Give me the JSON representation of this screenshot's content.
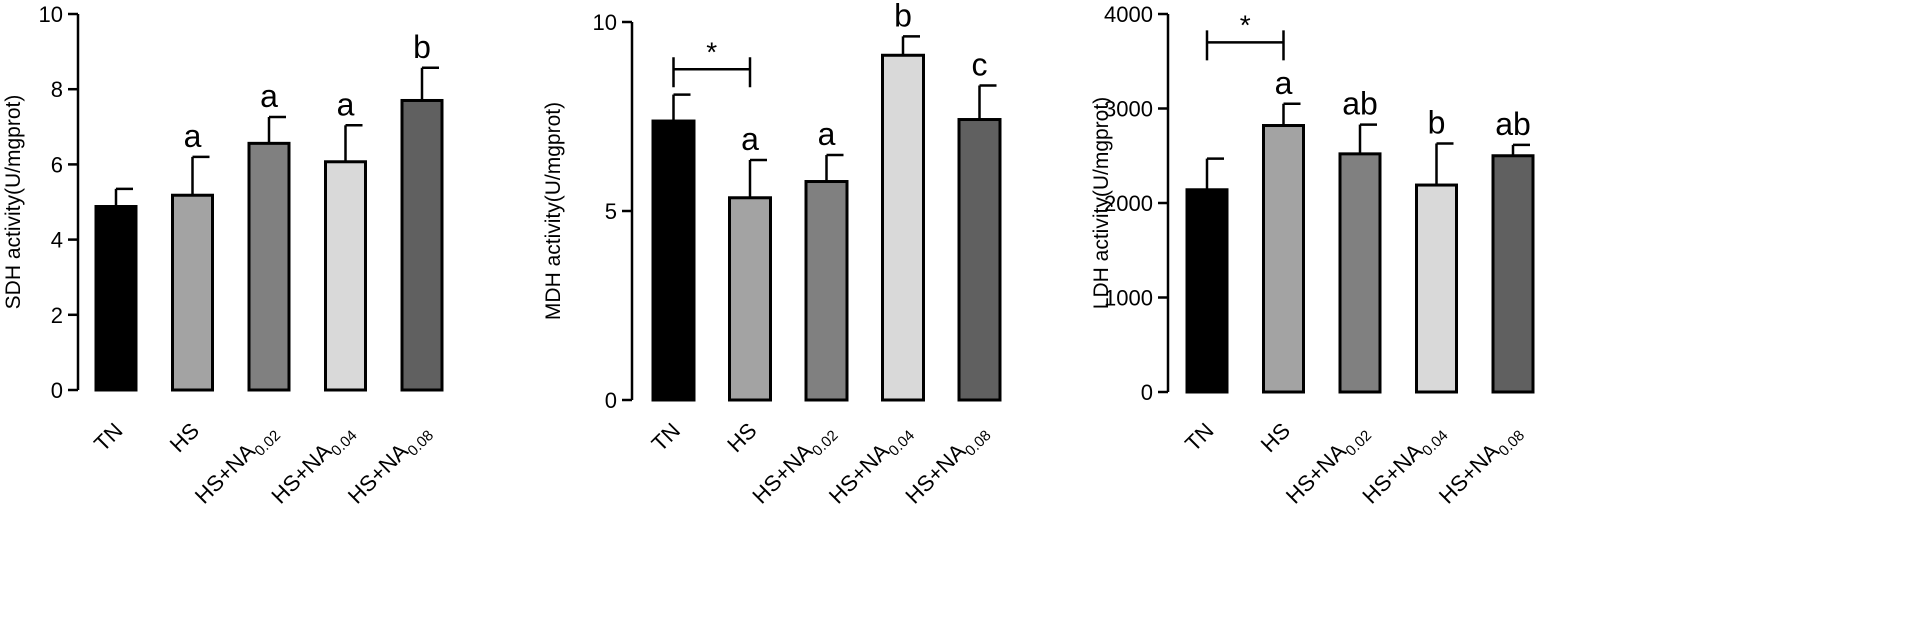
{
  "chart_data": [
    {
      "type": "bar",
      "panel": "sdh",
      "ylabel": "SDH activity(U/mgprot)",
      "ylim": [
        0,
        10
      ],
      "yticks": [
        0,
        2,
        4,
        6,
        8,
        10
      ],
      "categories": [
        {
          "main": "TN",
          "sub": ""
        },
        {
          "main": "HS",
          "sub": ""
        },
        {
          "main": "HS+NA",
          "sub": "0.02"
        },
        {
          "main": "HS+NA",
          "sub": "0.04"
        },
        {
          "main": "HS+NA",
          "sub": "0.08"
        }
      ],
      "values": [
        4.88,
        5.18,
        6.56,
        6.07,
        7.7
      ],
      "errors": [
        0.47,
        1.02,
        0.7,
        0.97,
        0.87
      ],
      "letters": [
        "",
        "a",
        "a",
        "a",
        "b"
      ],
      "colors": [
        "#000000",
        "#a3a3a3",
        "#808080",
        "#d9d9d9",
        "#606060"
      ],
      "significance": null
    },
    {
      "type": "bar",
      "panel": "mdh",
      "ylabel": "MDH activity(U/mgprot)",
      "ylim": [
        0,
        10
      ],
      "yticks": [
        0,
        5,
        10
      ],
      "categories": [
        {
          "main": "TN",
          "sub": ""
        },
        {
          "main": "HS",
          "sub": ""
        },
        {
          "main": "HS+NA",
          "sub": "0.02"
        },
        {
          "main": "HS+NA",
          "sub": "0.04"
        },
        {
          "main": "HS+NA",
          "sub": "0.08"
        }
      ],
      "values": [
        7.38,
        5.35,
        5.78,
        9.12,
        7.42
      ],
      "errors": [
        0.7,
        1.0,
        0.7,
        0.5,
        0.9
      ],
      "letters": [
        "",
        "a",
        "a",
        "b",
        "c"
      ],
      "colors": [
        "#000000",
        "#a3a3a3",
        "#808080",
        "#d9d9d9",
        "#606060"
      ],
      "significance": {
        "from": 0,
        "to": 1,
        "label": "*",
        "y": 8.75
      }
    },
    {
      "type": "bar",
      "panel": "ldh",
      "ylabel": "LDH activity(U/mgprot)",
      "ylim": [
        0,
        4000
      ],
      "yticks": [
        0,
        1000,
        2000,
        3000,
        4000
      ],
      "categories": [
        {
          "main": "TN",
          "sub": ""
        },
        {
          "main": "HS",
          "sub": ""
        },
        {
          "main": "HS+NA",
          "sub": "0.02"
        },
        {
          "main": "HS+NA",
          "sub": "0.04"
        },
        {
          "main": "HS+NA",
          "sub": "0.08"
        }
      ],
      "values": [
        2140,
        2820,
        2520,
        2190,
        2500
      ],
      "errors": [
        330,
        230,
        310,
        440,
        115
      ],
      "letters": [
        "",
        "a",
        "ab",
        "b",
        "ab"
      ],
      "colors": [
        "#000000",
        "#a3a3a3",
        "#808080",
        "#d9d9d9",
        "#606060"
      ],
      "significance": {
        "from": 0,
        "to": 1,
        "label": "*",
        "y": 3700
      }
    }
  ]
}
